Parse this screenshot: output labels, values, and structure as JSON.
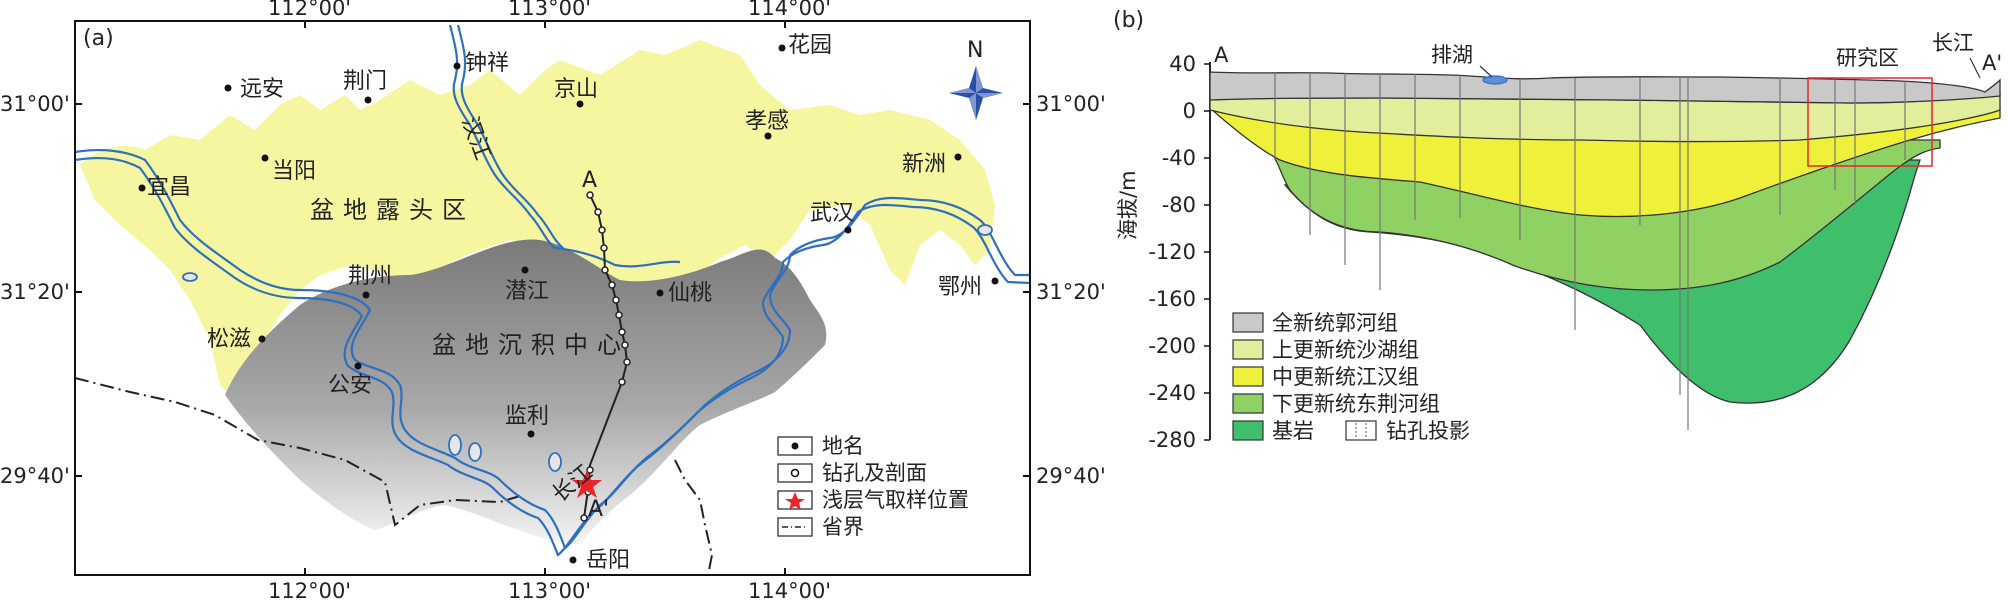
{
  "panel_a": {
    "label": "(a)",
    "top_coords": [
      "112°00'",
      "113°00'",
      "114°00'"
    ],
    "bottom_coords": [
      "112°00'",
      "113°00'",
      "114°00'"
    ],
    "left_coords": [
      "31°00'",
      "31°20'",
      "29°40'"
    ],
    "right_coords": [
      "31°00'",
      "31°20'",
      "29°40'"
    ],
    "places": [
      "远安",
      "荆门",
      "钟祥",
      "京山",
      "花园",
      "孝感",
      "新洲",
      "当阳",
      "宜昌",
      "武汉",
      "荆州",
      "潜江",
      "仙桃",
      "鄂州",
      "松滋",
      "公安",
      "监利",
      "岳阳"
    ],
    "river_labels": {
      "hanjiang": "汉江",
      "changjiang": "长江"
    },
    "regions": {
      "outcrop": "盆地露头区",
      "center": "盆地沉积中心"
    },
    "section_labels": {
      "start": "A",
      "end": "A'"
    },
    "north": "N",
    "legend": [
      {
        "symbol": "place-dot",
        "label": "地名"
      },
      {
        "symbol": "borehole-circle",
        "label": "钻孔及剖面"
      },
      {
        "symbol": "red-star",
        "label": "浅层气取样位置"
      },
      {
        "symbol": "dash-dot-line",
        "label": "省界"
      }
    ],
    "colors": {
      "outcrop": "#f7f6a0",
      "center": "#8a8a8a",
      "river": "#2f6fbf",
      "star": "#e8262a"
    }
  },
  "panel_b": {
    "label": "(b)",
    "labels": {
      "start": "A",
      "end": "A'",
      "lake": "排湖",
      "river": "长江",
      "study_area": "研究区"
    },
    "ylabel": "海拔/m",
    "y_ticks": [
      "40",
      "0",
      "-40",
      "-80",
      "-120",
      "-160",
      "-200",
      "-240",
      "-280"
    ],
    "legend": [
      {
        "label": "全新统郭河组",
        "color": "#c9c9c9"
      },
      {
        "label": "上更新统沙湖组",
        "color": "#e2ee9b"
      },
      {
        "label": "中更新统江汉组",
        "color": "#eef03a"
      },
      {
        "label": "下更新统东荆河组",
        "color": "#8fd163"
      },
      {
        "label": "基岩",
        "color": "#3fbf6b"
      },
      {
        "label": "钻孔投影",
        "color": "#ffffff"
      }
    ]
  }
}
